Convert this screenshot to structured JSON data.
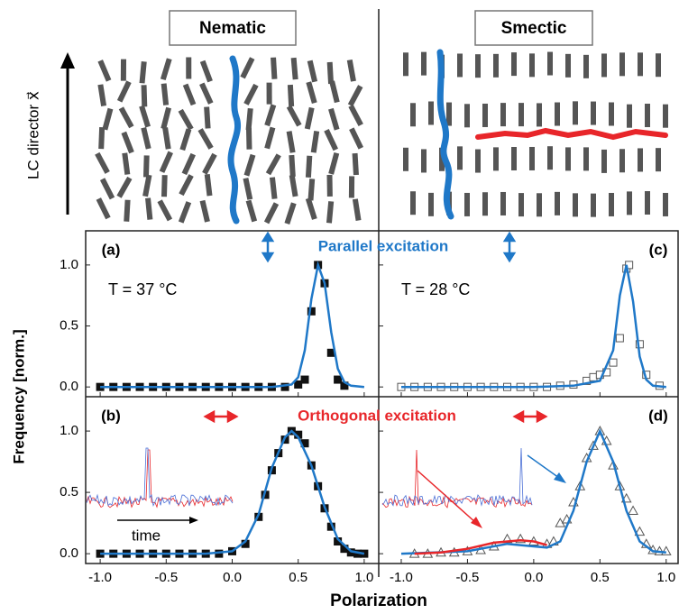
{
  "schematic": {
    "nematic": "Nematic",
    "smectic": "Smectic",
    "director_label": "LC director x⃗"
  },
  "figure": {
    "x_label": "Polarization",
    "y_label": "Frequency [norm.]",
    "parallel_label": "Parallel excitation",
    "orthogonal_label": "Orthogonal excitation",
    "inset_time_label": "time"
  },
  "chart_data": [
    {
      "type": "scatter",
      "panel": "(a)",
      "annotation": "T = 37 °C",
      "xlim": [
        -1.11,
        1.11
      ],
      "ylim": [
        -0.08,
        1.28
      ],
      "series": [
        {
          "type": "points",
          "marker": "square",
          "filled": true,
          "color": "#111111",
          "x": [
            -1.0,
            -0.9,
            -0.8,
            -0.7,
            -0.6,
            -0.5,
            -0.4,
            -0.3,
            -0.2,
            -0.1,
            0.0,
            0.1,
            0.2,
            0.3,
            0.4,
            0.5,
            0.55,
            0.6,
            0.65,
            0.7,
            0.75,
            0.8,
            0.85
          ],
          "values": [
            0,
            0,
            0,
            0,
            0,
            0,
            0,
            0,
            0,
            0,
            0,
            0,
            0,
            0,
            0,
            0.02,
            0.06,
            0.62,
            1.0,
            0.85,
            0.28,
            0.06,
            0.01
          ]
        },
        {
          "type": "line",
          "color": "#1f78c8",
          "x": [
            -1.0,
            0.3,
            0.45,
            0.5,
            0.55,
            0.6,
            0.65,
            0.7,
            0.75,
            0.8,
            0.85,
            0.9,
            1.0
          ],
          "values": [
            0,
            0,
            0.02,
            0.08,
            0.3,
            0.72,
            1.0,
            0.85,
            0.45,
            0.15,
            0.04,
            0.01,
            0
          ]
        }
      ]
    },
    {
      "type": "scatter",
      "panel": "(c)",
      "annotation": "T = 28 °C",
      "xlim": [
        -1.17,
        1.09
      ],
      "ylim": [
        -0.08,
        1.28
      ],
      "series": [
        {
          "type": "points",
          "marker": "square",
          "filled": false,
          "color": "#555555",
          "x": [
            -1.0,
            -0.9,
            -0.8,
            -0.7,
            -0.6,
            -0.5,
            -0.4,
            -0.3,
            -0.2,
            -0.1,
            0.0,
            0.1,
            0.2,
            0.3,
            0.4,
            0.45,
            0.5,
            0.55,
            0.6,
            0.65,
            0.7,
            0.72,
            0.8,
            0.85,
            0.95
          ],
          "values": [
            0,
            0,
            0,
            0,
            0,
            0,
            0,
            0,
            0,
            0,
            0,
            0,
            0.01,
            0.02,
            0.05,
            0.08,
            0.1,
            0.12,
            0.2,
            0.4,
            0.97,
            1.0,
            0.35,
            0.1,
            0.01
          ]
        },
        {
          "type": "line",
          "color": "#1f78c8",
          "x": [
            -1.0,
            0.0,
            0.3,
            0.5,
            0.6,
            0.65,
            0.7,
            0.75,
            0.8,
            0.85,
            0.9,
            1.0
          ],
          "values": [
            0,
            0,
            0.01,
            0.05,
            0.3,
            0.75,
            1.0,
            0.7,
            0.25,
            0.06,
            0.01,
            0
          ]
        }
      ]
    },
    {
      "type": "scatter",
      "panel": "(b)",
      "xlim": [
        -1.11,
        1.11
      ],
      "ylim": [
        -0.08,
        1.28
      ],
      "xticks": [
        {
          "value": -1,
          "label": "-1.0"
        },
        {
          "value": -0.5,
          "label": "-0.5"
        },
        {
          "value": 0,
          "label": "0.0"
        },
        {
          "value": 0.5,
          "label": "0.5"
        },
        {
          "value": 1,
          "label": "1.0"
        }
      ],
      "yticks": [
        {
          "value": 0,
          "label": "0.0"
        },
        {
          "value": 0.5,
          "label": "0.5"
        },
        {
          "value": 1,
          "label": "1.0"
        }
      ],
      "series": [
        {
          "type": "points",
          "marker": "square",
          "filled": true,
          "color": "#111111",
          "x": [
            -1.0,
            -0.9,
            -0.8,
            -0.7,
            -0.6,
            -0.5,
            -0.4,
            -0.3,
            -0.2,
            -0.1,
            0.0,
            0.1,
            0.2,
            0.25,
            0.3,
            0.35,
            0.4,
            0.45,
            0.5,
            0.55,
            0.6,
            0.65,
            0.7,
            0.75,
            0.8,
            0.85,
            0.9,
            0.95,
            1.0
          ],
          "values": [
            0,
            0,
            0,
            0,
            0,
            0,
            0,
            0,
            0,
            0,
            0.02,
            0.08,
            0.3,
            0.48,
            0.68,
            0.82,
            0.93,
            1.0,
            0.97,
            0.9,
            0.72,
            0.55,
            0.37,
            0.22,
            0.1,
            0.04,
            0.01,
            0,
            0
          ]
        },
        {
          "type": "line",
          "color": "#1f78c8",
          "x": [
            -1.0,
            -0.2,
            0.0,
            0.1,
            0.2,
            0.3,
            0.4,
            0.45,
            0.5,
            0.6,
            0.7,
            0.8,
            0.9,
            1.0
          ],
          "values": [
            0,
            0,
            0.02,
            0.1,
            0.32,
            0.7,
            0.95,
            1.0,
            0.95,
            0.72,
            0.38,
            0.12,
            0.02,
            0
          ]
        }
      ]
    },
    {
      "type": "scatter",
      "panel": "(d)",
      "xlim": [
        -1.17,
        1.09
      ],
      "ylim": [
        -0.08,
        1.28
      ],
      "xticks": [
        {
          "value": -1,
          "label": "-1.0"
        },
        {
          "value": -0.5,
          "label": "-0.5"
        },
        {
          "value": 0,
          "label": "0.0"
        },
        {
          "value": 0.5,
          "label": "0.5"
        },
        {
          "value": 1,
          "label": "1.0"
        }
      ],
      "series": [
        {
          "type": "points",
          "marker": "triangle",
          "filled": false,
          "color": "#555555",
          "x": [
            -0.9,
            -0.8,
            -0.7,
            -0.6,
            -0.5,
            -0.4,
            -0.3,
            -0.2,
            -0.1,
            0.0,
            0.1,
            0.15,
            0.2,
            0.25,
            0.3,
            0.35,
            0.4,
            0.45,
            0.5,
            0.55,
            0.6,
            0.65,
            0.7,
            0.75,
            0.8,
            0.85,
            0.9,
            0.95,
            1.0
          ],
          "values": [
            0,
            0,
            0.01,
            0.01,
            0.02,
            0.03,
            0.06,
            0.12,
            0.12,
            0.1,
            0.08,
            0.1,
            0.25,
            0.28,
            0.42,
            0.55,
            0.78,
            0.88,
            1.0,
            0.92,
            0.72,
            0.55,
            0.45,
            0.35,
            0.18,
            0.08,
            0.03,
            0.02,
            0.02
          ]
        },
        {
          "type": "line",
          "color": "#1f78c8",
          "x": [
            -1.0,
            -0.5,
            -0.2,
            0.0,
            0.1,
            0.2,
            0.3,
            0.4,
            0.5,
            0.6,
            0.7,
            0.8,
            0.9,
            1.0
          ],
          "values": [
            0,
            0.02,
            0.08,
            0.06,
            0.05,
            0.1,
            0.35,
            0.75,
            1.0,
            0.75,
            0.35,
            0.1,
            0.02,
            0.01
          ]
        },
        {
          "type": "line",
          "color": "#e8262a",
          "x": [
            -0.9,
            -0.7,
            -0.5,
            -0.3,
            -0.1,
            0.0,
            0.1
          ],
          "values": [
            0,
            0.01,
            0.04,
            0.09,
            0.11,
            0.1,
            0.07
          ]
        }
      ]
    }
  ]
}
